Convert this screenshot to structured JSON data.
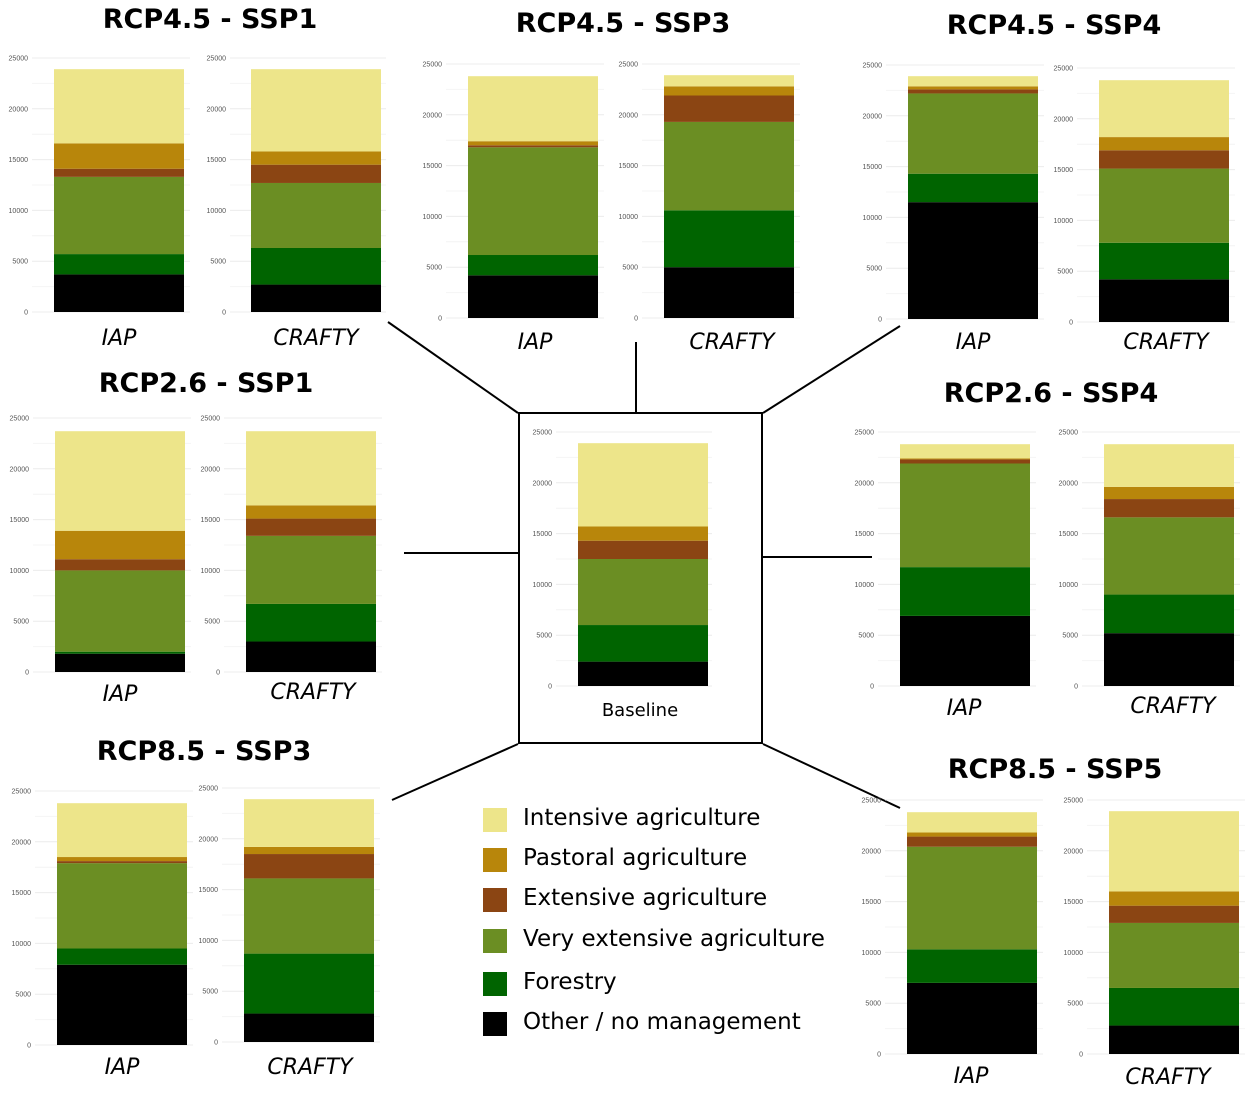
{
  "colors": {
    "intensive": "#ede58a",
    "pastoral": "#b8860b",
    "extensive": "#8b4513",
    "very_extensive": "#6b8e23",
    "forestry": "#006400",
    "other": "#000000"
  },
  "legend": [
    {
      "label": "Intensive agriculture",
      "color_key": "intensive"
    },
    {
      "label": "Pastoral agriculture",
      "color_key": "pastoral"
    },
    {
      "label": "Extensive agriculture",
      "color_key": "extensive"
    },
    {
      "label": "Very extensive agriculture",
      "color_key": "very_extensive"
    },
    {
      "label": "Forestry",
      "color_key": "forestry"
    },
    {
      "label": "Other / no management",
      "color_key": "other"
    }
  ],
  "baseline_label": "Baseline",
  "chart_data": [
    {
      "type": "bar",
      "stacked": true,
      "title": "Baseline",
      "categories": [
        "Baseline"
      ],
      "ylim": [
        0,
        25000
      ],
      "yticks": [
        "0",
        "5000",
        "10000",
        "15000",
        "20000",
        "25000"
      ],
      "series": [
        {
          "name": "Other / no management",
          "values": [
            2400
          ]
        },
        {
          "name": "Forestry",
          "values": [
            3600
          ]
        },
        {
          "name": "Very extensive agriculture",
          "values": [
            6500
          ]
        },
        {
          "name": "Extensive agriculture",
          "values": [
            1800
          ]
        },
        {
          "name": "Pastoral agriculture",
          "values": [
            1400
          ]
        },
        {
          "name": "Intensive agriculture",
          "values": [
            8200
          ]
        }
      ]
    },
    {
      "type": "bar",
      "stacked": true,
      "title": "RCP4.5 - SSP1",
      "categories": [
        "IAP",
        "CRAFTY"
      ],
      "ylim": [
        0,
        25000
      ],
      "yticks": [
        "0",
        "5000",
        "10000",
        "15000",
        "20000",
        "25000"
      ],
      "series": [
        {
          "name": "Other / no management",
          "values": [
            3700,
            2700
          ]
        },
        {
          "name": "Forestry",
          "values": [
            2000,
            3600
          ]
        },
        {
          "name": "Very extensive agriculture",
          "values": [
            7600,
            6400
          ]
        },
        {
          "name": "Extensive agriculture",
          "values": [
            800,
            1800
          ]
        },
        {
          "name": "Pastoral agriculture",
          "values": [
            2500,
            1300
          ]
        },
        {
          "name": "Intensive agriculture",
          "values": [
            7300,
            8100
          ]
        }
      ]
    },
    {
      "type": "bar",
      "stacked": true,
      "title": "RCP4.5 - SSP3",
      "categories": [
        "IAP",
        "CRAFTY"
      ],
      "ylim": [
        0,
        25000
      ],
      "yticks": [
        "0",
        "5000",
        "10000",
        "15000",
        "20000",
        "25000"
      ],
      "series": [
        {
          "name": "Other / no management",
          "values": [
            4200,
            5000
          ]
        },
        {
          "name": "Forestry",
          "values": [
            2000,
            5600
          ]
        },
        {
          "name": "Very extensive agriculture",
          "values": [
            10600,
            8700
          ]
        },
        {
          "name": "Extensive agriculture",
          "values": [
            200,
            2600
          ]
        },
        {
          "name": "Pastoral agriculture",
          "values": [
            400,
            900
          ]
        },
        {
          "name": "Intensive agriculture",
          "values": [
            6400,
            1100
          ]
        }
      ]
    },
    {
      "type": "bar",
      "stacked": true,
      "title": "RCP4.5 - SSP4",
      "categories": [
        "IAP",
        "CRAFTY"
      ],
      "ylim": [
        0,
        25000
      ],
      "yticks": [
        "0",
        "5000",
        "10000",
        "15000",
        "20000",
        "25000"
      ],
      "series": [
        {
          "name": "Other / no management",
          "values": [
            11500,
            4200
          ]
        },
        {
          "name": "Forestry",
          "values": [
            2800,
            3600
          ]
        },
        {
          "name": "Very extensive agriculture",
          "values": [
            7900,
            7300
          ]
        },
        {
          "name": "Extensive agriculture",
          "values": [
            400,
            1800
          ]
        },
        {
          "name": "Pastoral agriculture",
          "values": [
            300,
            1300
          ]
        },
        {
          "name": "Intensive agriculture",
          "values": [
            1000,
            5600
          ]
        }
      ]
    },
    {
      "type": "bar",
      "stacked": true,
      "title": "RCP2.6 - SSP1",
      "categories": [
        "IAP",
        "CRAFTY"
      ],
      "ylim": [
        0,
        25000
      ],
      "yticks": [
        "0",
        "5000",
        "10000",
        "15000",
        "20000",
        "25000"
      ],
      "series": [
        {
          "name": "Other / no management",
          "values": [
            1800,
            3000
          ]
        },
        {
          "name": "Forestry",
          "values": [
            200,
            3700
          ]
        },
        {
          "name": "Very extensive agriculture",
          "values": [
            8000,
            6700
          ]
        },
        {
          "name": "Extensive agriculture",
          "values": [
            1100,
            1700
          ]
        },
        {
          "name": "Pastoral agriculture",
          "values": [
            2800,
            1300
          ]
        },
        {
          "name": "Intensive agriculture",
          "values": [
            9800,
            7300
          ]
        }
      ]
    },
    {
      "type": "bar",
      "stacked": true,
      "title": "RCP2.6 - SSP4",
      "categories": [
        "IAP",
        "CRAFTY"
      ],
      "ylim": [
        0,
        25000
      ],
      "yticks": [
        "0",
        "5000",
        "10000",
        "15000",
        "20000",
        "25000"
      ],
      "series": [
        {
          "name": "Other / no management",
          "values": [
            6900,
            5200
          ]
        },
        {
          "name": "Forestry",
          "values": [
            4800,
            3800
          ]
        },
        {
          "name": "Very extensive agriculture",
          "values": [
            10200,
            7600
          ]
        },
        {
          "name": "Extensive agriculture",
          "values": [
            400,
            1800
          ]
        },
        {
          "name": "Pastoral agriculture",
          "values": [
            100,
            1200
          ]
        },
        {
          "name": "Intensive agriculture",
          "values": [
            1400,
            4200
          ]
        }
      ]
    },
    {
      "type": "bar",
      "stacked": true,
      "title": "RCP8.5 - SSP3",
      "categories": [
        "IAP",
        "CRAFTY"
      ],
      "ylim": [
        0,
        25000
      ],
      "yticks": [
        "0",
        "5000",
        "10000",
        "15000",
        "20000",
        "25000"
      ],
      "series": [
        {
          "name": "Other / no management",
          "values": [
            7900,
            2800
          ]
        },
        {
          "name": "Forestry",
          "values": [
            1600,
            5900
          ]
        },
        {
          "name": "Very extensive agriculture",
          "values": [
            8400,
            7400
          ]
        },
        {
          "name": "Extensive agriculture",
          "values": [
            200,
            2400
          ]
        },
        {
          "name": "Pastoral agriculture",
          "values": [
            400,
            700
          ]
        },
        {
          "name": "Intensive agriculture",
          "values": [
            5300,
            4700
          ]
        }
      ]
    },
    {
      "type": "bar",
      "stacked": true,
      "title": "RCP8.5 - SSP5",
      "categories": [
        "IAP",
        "CRAFTY"
      ],
      "ylim": [
        0,
        25000
      ],
      "yticks": [
        "0",
        "5000",
        "10000",
        "15000",
        "20000",
        "25000"
      ],
      "series": [
        {
          "name": "Other / no management",
          "values": [
            7000,
            2800
          ]
        },
        {
          "name": "Forestry",
          "values": [
            3300,
            3700
          ]
        },
        {
          "name": "Very extensive agriculture",
          "values": [
            10100,
            6400
          ]
        },
        {
          "name": "Extensive agriculture",
          "values": [
            1000,
            1700
          ]
        },
        {
          "name": "Pastoral agriculture",
          "values": [
            400,
            1400
          ]
        },
        {
          "name": "Intensive agriculture",
          "values": [
            2000,
            7900
          ]
        }
      ]
    }
  ]
}
